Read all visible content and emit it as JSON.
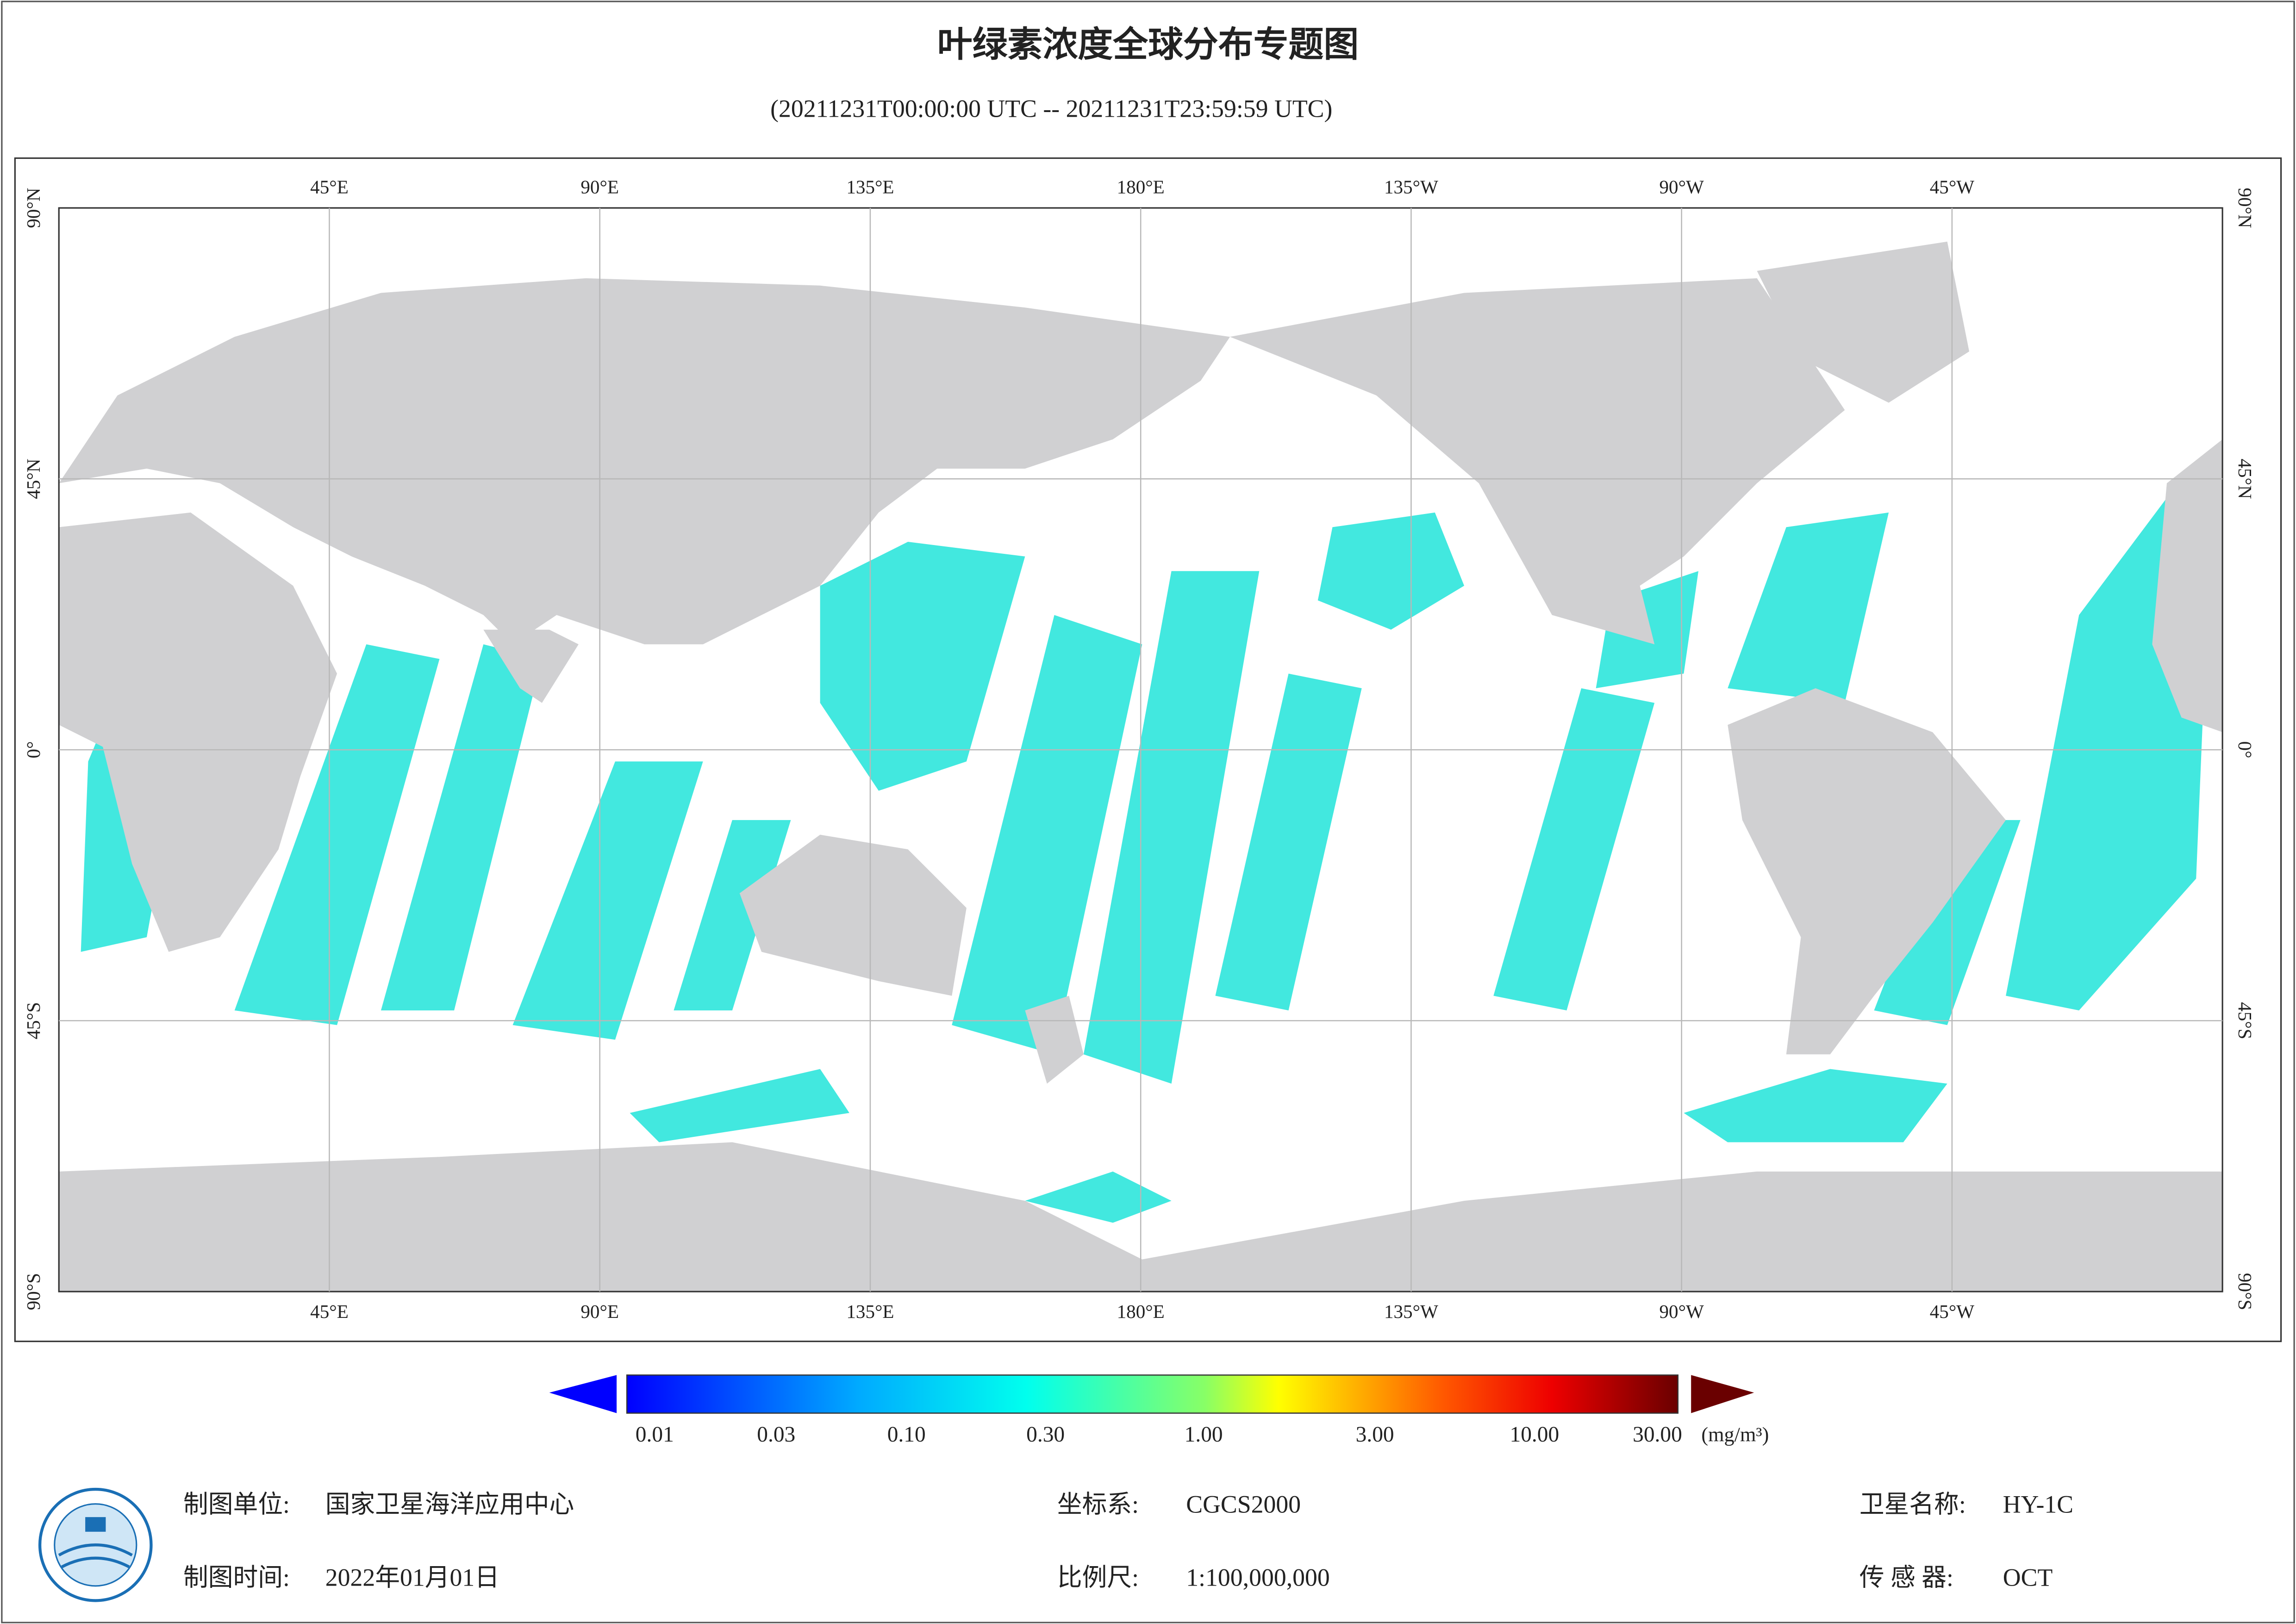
{
  "header": {
    "title": "叶绿素浓度全球分布专题图",
    "subtitle": "(20211231T00:00:00 UTC -- 20211231T23:59:59 UTC)"
  },
  "map": {
    "lon_labels": [
      "45°E",
      "90°E",
      "135°E",
      "180°E",
      "135°W",
      "90°W",
      "45°W"
    ],
    "lat_labels": [
      "90°N",
      "45°N",
      "0°",
      "45°S",
      "90°S"
    ]
  },
  "colorbar": {
    "ticks": [
      "0.01",
      "0.03",
      "0.10",
      "0.30",
      "1.00",
      "3.00",
      "10.00",
      "30.00"
    ],
    "unit": "(mg/m³)"
  },
  "footer": {
    "agency": {
      "label": "制图单位:",
      "value": "国家卫星海洋应用中心"
    },
    "crs": {
      "label": "坐标系:",
      "value": "CGCS2000"
    },
    "satellite": {
      "label": "卫星名称:",
      "value": "HY-1C"
    },
    "date": {
      "label": "制图时间:",
      "value": "2022年01月01日"
    },
    "scale": {
      "label": "比例尺:",
      "value": "1:100,000,000"
    },
    "sensor": {
      "label": "传 感 器:",
      "value": "OCT"
    }
  }
}
